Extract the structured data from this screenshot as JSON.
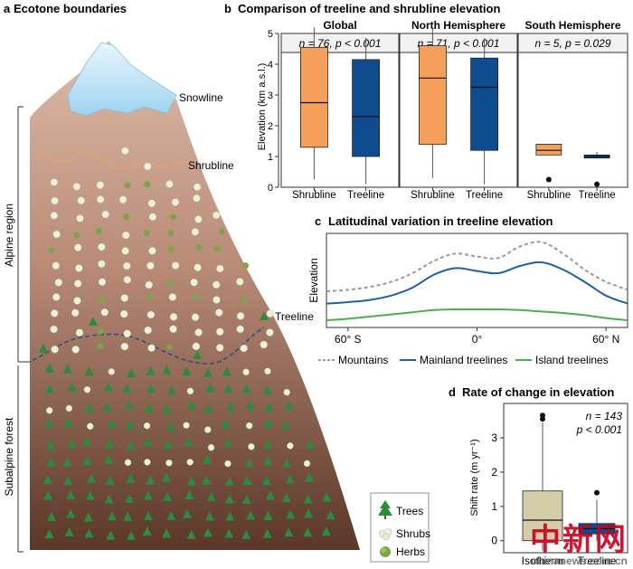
{
  "panel_a": {
    "letter": "a",
    "title": "Ecotone boundaries",
    "labels": {
      "snowline": "Snowline",
      "shrubline": "Shrubline",
      "treeline": "Treeline"
    },
    "regions": {
      "alpine": "Alpine region",
      "subalpine": "Subalpine forest"
    },
    "legend": {
      "trees": "Trees",
      "shrubs": "Shrubs",
      "herbs": "Herbs"
    }
  },
  "panel_b": {
    "letter": "b",
    "title": "Comparison of treeline and shrubline elevation",
    "ylabel": "Elevation (km a.s.l.)",
    "yticks": [
      "0",
      "1",
      "2",
      "3",
      "4",
      "5"
    ]
  },
  "panel_c": {
    "letter": "c",
    "title": "Latitudinal variation in treeline elevation",
    "ylabel": "Elevation",
    "xticks": [
      "60° S",
      "0°",
      "60° N"
    ],
    "legend": [
      "Mountains",
      "Mainland treelines",
      "Island treelines"
    ]
  },
  "panel_d": {
    "letter": "d",
    "title": "Rate of change in elevation",
    "ylabel": "Shift rate (m yr⁻¹)",
    "yticks": [
      "0",
      "1",
      "2",
      "3"
    ],
    "stat_n": "n = 143",
    "stat_p": "p < 0.001"
  },
  "watermark": {
    "cn": "中新网",
    "en": "chinanews.com.cn"
  },
  "colors": {
    "shrubline": "#F5A05A",
    "treeline": "#0F4C8F",
    "mainland": "#1F5FA6",
    "island": "#4CAF50",
    "mountains": "#9a9a9a",
    "isotherm": "#D5CCA8",
    "mountain_top": "#D9B8A4",
    "mountain_bottom": "#5E3B2C",
    "snow": "#BFE3F5"
  },
  "chart_data": [
    {
      "type": "box",
      "title": "Global",
      "subtitle": "n = 76, p < 0.001",
      "ylabel": "Elevation (km a.s.l.)",
      "ylim": [
        0,
        5
      ],
      "categories": [
        "Shrubline",
        "Treeline"
      ],
      "boxes": [
        {
          "category": "Shrubline",
          "min": 0.25,
          "q1": 1.3,
          "median": 2.75,
          "q3": 4.55,
          "max": 5.2,
          "outliers": []
        },
        {
          "category": "Treeline",
          "min": 0.1,
          "q1": 1.0,
          "median": 2.3,
          "q3": 4.15,
          "max": 4.85,
          "outliers": []
        }
      ]
    },
    {
      "type": "box",
      "title": "North Hemisphere",
      "subtitle": "n = 71, p < 0.001",
      "ylim": [
        0,
        5
      ],
      "categories": [
        "Shrubline",
        "Treeline"
      ],
      "boxes": [
        {
          "category": "Shrubline",
          "min": 0.3,
          "q1": 1.4,
          "median": 3.55,
          "q3": 4.6,
          "max": 5.2,
          "outliers": []
        },
        {
          "category": "Treeline",
          "min": 0.1,
          "q1": 1.2,
          "median": 3.25,
          "q3": 4.2,
          "max": 4.85,
          "outliers": []
        }
      ]
    },
    {
      "type": "box",
      "title": "South Hemisphere",
      "subtitle": "n = 5, p = 0.029",
      "ylim": [
        0,
        5
      ],
      "categories": [
        "Shrubline",
        "Treeline"
      ],
      "boxes": [
        {
          "category": "Shrubline",
          "min": 1.05,
          "q1": 1.05,
          "median": 1.2,
          "q3": 1.4,
          "max": 1.4,
          "outliers": [
            0.25
          ]
        },
        {
          "category": "Treeline",
          "min": 0.95,
          "q1": 0.95,
          "median": 1.0,
          "q3": 1.05,
          "max": 1.15,
          "outliers": [
            0.1
          ]
        }
      ]
    },
    {
      "type": "line",
      "title": "Latitudinal variation in treeline elevation",
      "xlabel": "",
      "ylabel": "Elevation",
      "x": [
        -70,
        -60,
        -50,
        -40,
        -30,
        -20,
        -10,
        0,
        10,
        20,
        30,
        40,
        50,
        60,
        70
      ],
      "series": [
        {
          "name": "Mountains",
          "style": "dashed",
          "values": [
            0.2,
            0.22,
            0.26,
            0.33,
            0.45,
            0.62,
            0.72,
            0.68,
            0.66,
            0.82,
            0.88,
            0.72,
            0.5,
            0.33,
            0.22
          ]
        },
        {
          "name": "Mainland treelines",
          "style": "solid",
          "values": [
            0.03,
            0.05,
            0.08,
            0.14,
            0.25,
            0.43,
            0.52,
            0.48,
            0.45,
            0.55,
            0.6,
            0.5,
            0.33,
            0.14,
            0.03
          ]
        },
        {
          "name": "Island treelines",
          "style": "solid",
          "values": [
            -0.2,
            -0.18,
            -0.15,
            -0.12,
            -0.09,
            -0.06,
            -0.05,
            -0.05,
            -0.05,
            -0.06,
            -0.08,
            -0.1,
            -0.13,
            -0.17,
            -0.2
          ]
        }
      ],
      "ylim": [
        -0.3,
        1.0
      ]
    },
    {
      "type": "box",
      "title": "Rate of change in elevation",
      "ylabel": "Shift rate (m yr⁻¹)",
      "ylim": [
        -0.35,
        4
      ],
      "categories": [
        "Isotherm",
        "Treeline"
      ],
      "boxes": [
        {
          "category": "Isotherm",
          "min": -0.3,
          "q1": 0.0,
          "median": 0.6,
          "q3": 1.45,
          "max": 3.45,
          "outliers": [
            3.55,
            3.65
          ]
        },
        {
          "category": "Treeline",
          "min": 0.0,
          "q1": 0.2,
          "median": 0.35,
          "q3": 0.5,
          "max": 1.2,
          "outliers": [
            1.4
          ]
        }
      ]
    }
  ]
}
